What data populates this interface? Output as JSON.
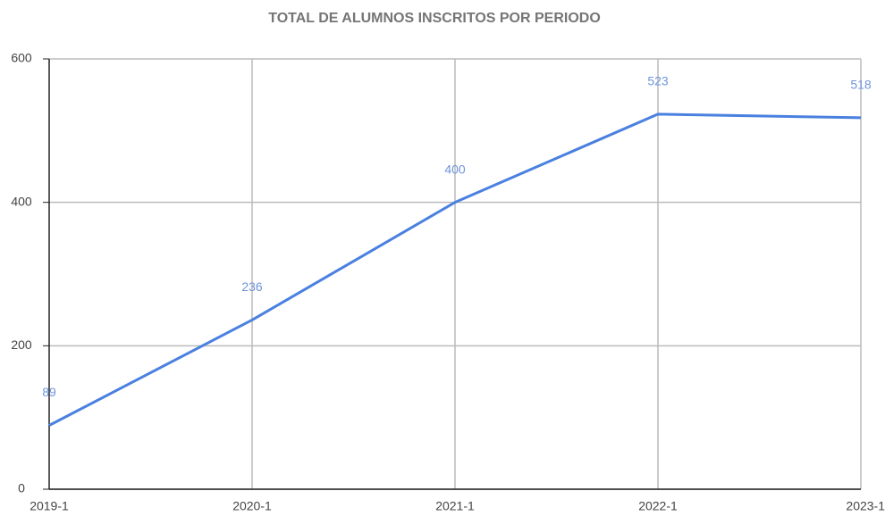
{
  "chart_data": {
    "type": "line",
    "title": "TOTAL DE ALUMNOS INSCRITOS POR PERIODO",
    "categories": [
      "2019-1",
      "2020-1",
      "2021-1",
      "2022-1",
      "2023-1"
    ],
    "values": [
      89,
      236,
      400,
      523,
      518
    ],
    "color": "#4a80e0",
    "ylim": [
      0,
      600
    ],
    "yticks": [
      0,
      200,
      400,
      600
    ],
    "grid": true
  }
}
